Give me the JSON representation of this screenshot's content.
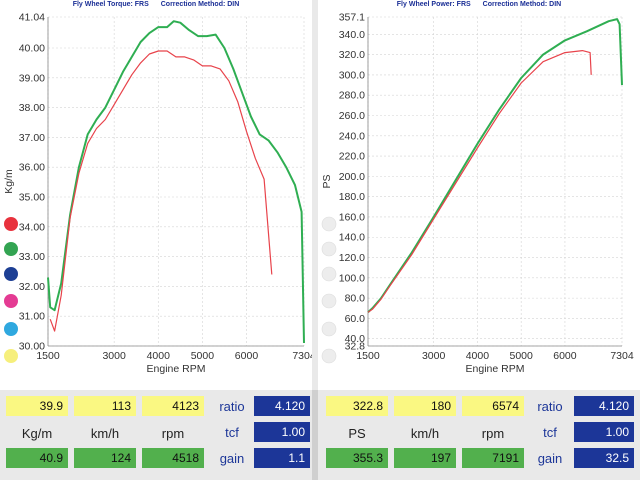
{
  "torque_panel": {
    "title": "Fly Wheel Torque: FRS",
    "method": "Correction Method: DIN"
  },
  "power_panel": {
    "title": "Fly Wheel Power: FRS",
    "method": "Correction Method: DIN"
  },
  "chart_data": [
    {
      "type": "line",
      "xlabel": "Engine RPM",
      "ylabel": "Kg/m",
      "xlim": [
        1500,
        7304
      ],
      "ylim": [
        30.0,
        41.04
      ],
      "x_ticks": [
        "1500",
        "3000",
        "4000",
        "5000",
        "6000",
        "7304"
      ],
      "y_ticks": [
        "30.00",
        "31.00",
        "32.00",
        "33.00",
        "34.00",
        "35.00",
        "36.00",
        "37.00",
        "38.00",
        "39.00",
        "40.00",
        "41.04"
      ],
      "grid": true,
      "series": [
        {
          "color": "#2fae52",
          "x": [
            1500,
            1550,
            1650,
            1800,
            2000,
            2200,
            2400,
            2600,
            2800,
            3000,
            3200,
            3400,
            3600,
            3800,
            4000,
            4200,
            4350,
            4500,
            4700,
            4900,
            5100,
            5300,
            5500,
            5700,
            5900,
            6100,
            6300,
            6500,
            6700,
            6900,
            7100,
            7250,
            7304
          ],
          "y": [
            32.3,
            31.3,
            31.2,
            32.1,
            34.4,
            36.0,
            37.1,
            37.6,
            38.0,
            38.6,
            39.2,
            39.7,
            40.2,
            40.5,
            40.7,
            40.7,
            40.9,
            40.85,
            40.6,
            40.4,
            40.4,
            40.45,
            40.0,
            39.3,
            38.5,
            37.7,
            37.1,
            36.9,
            36.5,
            36.0,
            35.4,
            34.5,
            30.1
          ]
        },
        {
          "color": "#e8434b",
          "x": [
            1550,
            1650,
            1800,
            2000,
            2200,
            2400,
            2600,
            2800,
            3000,
            3200,
            3400,
            3600,
            3800,
            4000,
            4200,
            4400,
            4600,
            4800,
            5000,
            5200,
            5400,
            5600,
            5800,
            6000,
            6200,
            6400,
            6574
          ],
          "y": [
            30.9,
            30.5,
            31.7,
            34.3,
            35.8,
            36.8,
            37.3,
            37.6,
            38.1,
            38.6,
            39.1,
            39.5,
            39.8,
            39.9,
            39.9,
            39.7,
            39.7,
            39.6,
            39.4,
            39.4,
            39.3,
            38.9,
            38.2,
            37.2,
            36.3,
            35.6,
            32.4
          ]
        }
      ]
    },
    {
      "type": "line",
      "xlabel": "Engine RPM",
      "ylabel": "PS",
      "xlim": [
        1500,
        7304
      ],
      "ylim": [
        32.8,
        357.1
      ],
      "x_ticks": [
        "1500",
        "3000",
        "4000",
        "5000",
        "6000",
        "7304"
      ],
      "y_ticks": [
        "32.8",
        "40.0",
        "60.0",
        "80.0",
        "100.0",
        "120.0",
        "140.0",
        "160.0",
        "180.0",
        "200.0",
        "220.0",
        "240.0",
        "260.0",
        "280.0",
        "300.0",
        "320.0",
        "340.0",
        "357.1"
      ],
      "grid": true,
      "series": [
        {
          "color": "#2fae52",
          "x": [
            1500,
            1600,
            1800,
            2000,
            2500,
            3000,
            3500,
            4000,
            4500,
            5000,
            5500,
            6000,
            6500,
            7000,
            7191,
            7250,
            7304
          ],
          "y": [
            66,
            70,
            80,
            93,
            125,
            160,
            196,
            232,
            266,
            297,
            320,
            334,
            343,
            353,
            355,
            350,
            290
          ]
        },
        {
          "color": "#e8434b",
          "x": [
            1500,
            1600,
            1800,
            2000,
            2500,
            3000,
            3500,
            4000,
            4500,
            5000,
            5500,
            6000,
            6400,
            6574,
            6600
          ],
          "y": [
            66,
            69,
            79,
            92,
            123,
            158,
            193,
            228,
            262,
            292,
            313,
            322,
            324,
            322,
            300
          ]
        }
      ]
    }
  ],
  "legend_colors": [
    "#e8323d",
    "#33a452",
    "#1d3f94",
    "#e43b93",
    "#2fa8df",
    "#f6ef7c"
  ],
  "readouts": {
    "left": {
      "current": [
        "39.9",
        "113",
        "4123"
      ],
      "units": [
        "Kg/m",
        "km/h",
        "rpm"
      ],
      "peak": [
        "40.9",
        "124",
        "4518"
      ],
      "ratio_label": "ratio",
      "ratio": "4.120",
      "tcf_label": "tcf",
      "tcf": "1.00",
      "gain_label": "gain",
      "gain": "1.1"
    },
    "right": {
      "current": [
        "322.8",
        "180",
        "6574"
      ],
      "units": [
        "PS",
        "km/h",
        "rpm"
      ],
      "peak": [
        "355.3",
        "197",
        "7191"
      ],
      "ratio_label": "ratio",
      "ratio": "4.120",
      "tcf_label": "tcf",
      "tcf": "1.00",
      "gain_label": "gain",
      "gain": "32.5"
    }
  }
}
